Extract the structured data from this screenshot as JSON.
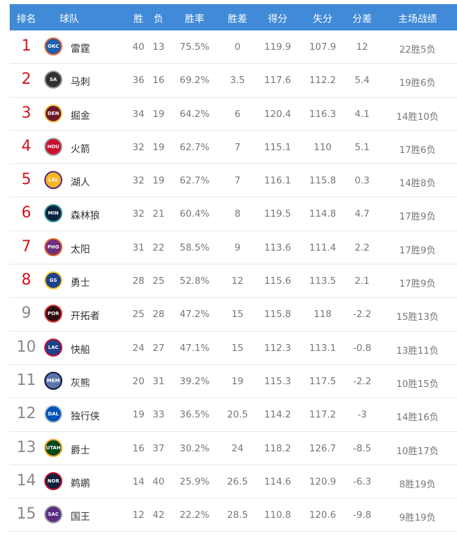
{
  "headers": [
    "排名",
    "球队",
    "胜",
    "负",
    "胜率",
    "胜差",
    "得分",
    "失分",
    "分差",
    "主场战绩"
  ],
  "rows": [
    {
      "rank": "1",
      "abbr": "OKC",
      "team": "雷霆",
      "w": "40",
      "l": "13",
      "pct": "75.5%",
      "gb": "0",
      "pf": "119.9",
      "pa": "107.9",
      "diff": "12",
      "home": "22胜5负",
      "color": "#1d5fb0",
      "ring": "#ef6b33"
    },
    {
      "rank": "2",
      "abbr": "SA",
      "team": "马刺",
      "w": "36",
      "l": "16",
      "pct": "69.2%",
      "gb": "3.5",
      "pf": "117.6",
      "pa": "112.2",
      "diff": "5.4",
      "home": "19胜6负",
      "color": "#333333",
      "ring": "#999999"
    },
    {
      "rank": "3",
      "abbr": "DEN",
      "team": "掘金",
      "w": "34",
      "l": "19",
      "pct": "64.2%",
      "gb": "6",
      "pf": "120.4",
      "pa": "116.3",
      "diff": "4.1",
      "home": "14胜10负",
      "color": "#6b1a2b",
      "ring": "#f2c23a"
    },
    {
      "rank": "4",
      "abbr": "HOU",
      "team": "火箭",
      "w": "32",
      "l": "19",
      "pct": "62.7%",
      "gb": "7",
      "pf": "115.1",
      "pa": "110",
      "diff": "5.1",
      "home": "17胜6负",
      "color": "#c8102e",
      "ring": "#999999"
    },
    {
      "rank": "5",
      "abbr": "LAL",
      "team": "湖人",
      "w": "32",
      "l": "19",
      "pct": "62.7%",
      "gb": "7",
      "pf": "116.1",
      "pa": "115.8",
      "diff": "0.3",
      "home": "14胜8负",
      "color": "#f6b625",
      "ring": "#552583"
    },
    {
      "rank": "6",
      "abbr": "MIN",
      "team": "森林狼",
      "w": "32",
      "l": "21",
      "pct": "60.4%",
      "gb": "8",
      "pf": "119.5",
      "pa": "114.8",
      "diff": "4.7",
      "home": "17胜9负",
      "color": "#0c2340",
      "ring": "#2a8a8a"
    },
    {
      "rank": "7",
      "abbr": "PHO",
      "team": "太阳",
      "w": "31",
      "l": "22",
      "pct": "58.5%",
      "gb": "9",
      "pf": "113.6",
      "pa": "111.4",
      "diff": "2.2",
      "home": "17胜9负",
      "color": "#6a2f7f",
      "ring": "#e56020"
    },
    {
      "rank": "8",
      "abbr": "GS",
      "team": "勇士",
      "w": "28",
      "l": "25",
      "pct": "52.8%",
      "gb": "12",
      "pf": "115.6",
      "pa": "113.5",
      "diff": "2.1",
      "home": "17胜9负",
      "color": "#1d428a",
      "ring": "#ffc72c"
    },
    {
      "rank": "9",
      "abbr": "POR",
      "team": "开拓者",
      "w": "25",
      "l": "28",
      "pct": "47.2%",
      "gb": "15",
      "pf": "115.8",
      "pa": "118",
      "diff": "-2.2",
      "home": "15胜13负",
      "color": "#2b0f12",
      "ring": "#e03a3e"
    },
    {
      "rank": "10",
      "abbr": "LAC",
      "team": "快船",
      "w": "24",
      "l": "27",
      "pct": "47.1%",
      "gb": "15",
      "pf": "112.3",
      "pa": "113.1",
      "diff": "-0.8",
      "home": "13胜11负",
      "color": "#1d428a",
      "ring": "#c8102e"
    },
    {
      "rank": "11",
      "abbr": "MEM",
      "team": "灰熊",
      "w": "20",
      "l": "31",
      "pct": "39.2%",
      "gb": "19",
      "pf": "115.3",
      "pa": "117.5",
      "diff": "-2.2",
      "home": "10胜15负",
      "color": "#5d76a9",
      "ring": "#12173f"
    },
    {
      "rank": "12",
      "abbr": "DAL",
      "team": "独行侠",
      "w": "19",
      "l": "33",
      "pct": "36.5%",
      "gb": "20.5",
      "pf": "114.2",
      "pa": "117.2",
      "diff": "-3",
      "home": "14胜16负",
      "color": "#0053bc",
      "ring": "#bbc4ca"
    },
    {
      "rank": "13",
      "abbr": "UTAH",
      "team": "爵士",
      "w": "16",
      "l": "37",
      "pct": "30.2%",
      "gb": "24",
      "pf": "118.2",
      "pa": "126.7",
      "diff": "-8.5",
      "home": "10胜17负",
      "color": "#00471b",
      "ring": "#f9a01b"
    },
    {
      "rank": "14",
      "abbr": "NOR",
      "team": "鹈鹕",
      "w": "14",
      "l": "40",
      "pct": "25.9%",
      "gb": "26.5",
      "pf": "114.6",
      "pa": "120.9",
      "diff": "-6.3",
      "home": "8胜19负",
      "color": "#0c2340",
      "ring": "#c8102e"
    },
    {
      "rank": "15",
      "abbr": "SAC",
      "team": "国王",
      "w": "12",
      "l": "42",
      "pct": "22.2%",
      "gb": "28.5",
      "pf": "110.8",
      "pa": "120.6",
      "diff": "-9.8",
      "home": "9胜19负",
      "color": "#5a2d81",
      "ring": "#9aa0a6"
    }
  ]
}
